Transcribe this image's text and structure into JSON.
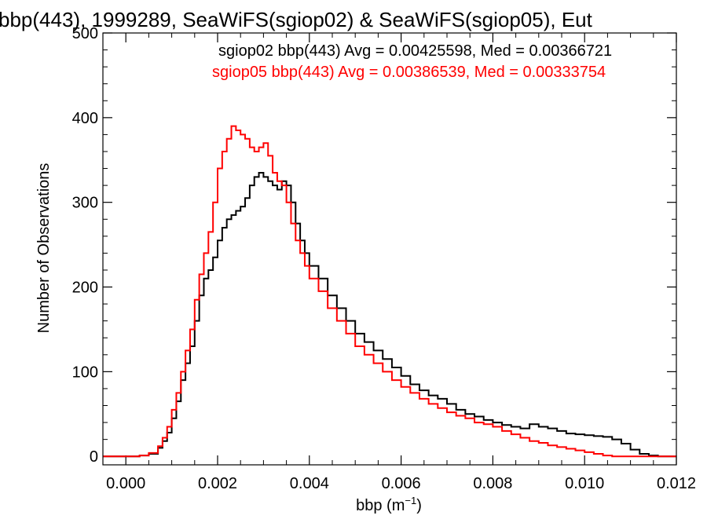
{
  "chart_data": {
    "type": "line",
    "title": "bbp(443), 1999289, SeaWiFS(sgiop02) & SeaWiFS(sgiop05), Eut",
    "xlabel_base": "bbp (m",
    "xlabel_sup": "−1",
    "xlabel_close": ")",
    "ylabel": "Number of Observations",
    "xlim": [
      -0.0005,
      0.012
    ],
    "ylim": [
      -10,
      500
    ],
    "x_ticks": [
      0.0,
      0.002,
      0.004,
      0.006,
      0.008,
      0.01,
      0.012
    ],
    "x_tick_labels": [
      "0.000",
      "0.002",
      "0.004",
      "0.006",
      "0.008",
      "0.010",
      "0.012"
    ],
    "y_ticks": [
      0,
      100,
      200,
      300,
      400,
      500
    ],
    "y_tick_labels": [
      "0",
      "100",
      "200",
      "300",
      "400",
      "500"
    ],
    "grid": false,
    "series": [
      {
        "name": "sgiop02",
        "color": "#000000",
        "stats_text": "sgiop02 bbp(443) Avg = 0.00425598, Med = 0.00366721",
        "points": [
          [
            0.0,
            0
          ],
          [
            0.0003,
            1
          ],
          [
            0.0005,
            3
          ],
          [
            0.0007,
            10
          ],
          [
            0.0008,
            18
          ],
          [
            0.0009,
            28
          ],
          [
            0.001,
            45
          ],
          [
            0.0011,
            65
          ],
          [
            0.0012,
            90
          ],
          [
            0.0013,
            110
          ],
          [
            0.0014,
            130
          ],
          [
            0.0015,
            160
          ],
          [
            0.0016,
            190
          ],
          [
            0.0017,
            210
          ],
          [
            0.0018,
            220
          ],
          [
            0.0019,
            235
          ],
          [
            0.002,
            255
          ],
          [
            0.0021,
            270
          ],
          [
            0.0022,
            280
          ],
          [
            0.0023,
            285
          ],
          [
            0.0024,
            290
          ],
          [
            0.0025,
            295
          ],
          [
            0.0026,
            305
          ],
          [
            0.0027,
            320
          ],
          [
            0.0028,
            330
          ],
          [
            0.0029,
            335
          ],
          [
            0.003,
            330
          ],
          [
            0.0031,
            325
          ],
          [
            0.0032,
            320
          ],
          [
            0.0033,
            315
          ],
          [
            0.0034,
            325
          ],
          [
            0.0035,
            320
          ],
          [
            0.0036,
            300
          ],
          [
            0.0037,
            275
          ],
          [
            0.0038,
            255
          ],
          [
            0.0039,
            240
          ],
          [
            0.004,
            225
          ],
          [
            0.0042,
            210
          ],
          [
            0.0044,
            190
          ],
          [
            0.0046,
            175
          ],
          [
            0.0048,
            160
          ],
          [
            0.005,
            145
          ],
          [
            0.0052,
            135
          ],
          [
            0.0054,
            125
          ],
          [
            0.0056,
            115
          ],
          [
            0.0058,
            105
          ],
          [
            0.006,
            95
          ],
          [
            0.0062,
            85
          ],
          [
            0.0064,
            78
          ],
          [
            0.0066,
            72
          ],
          [
            0.0068,
            68
          ],
          [
            0.007,
            62
          ],
          [
            0.0072,
            55
          ],
          [
            0.0074,
            50
          ],
          [
            0.0076,
            47
          ],
          [
            0.0078,
            43
          ],
          [
            0.008,
            40
          ],
          [
            0.0082,
            37
          ],
          [
            0.0084,
            35
          ],
          [
            0.0086,
            33
          ],
          [
            0.0088,
            38
          ],
          [
            0.009,
            35
          ],
          [
            0.0092,
            33
          ],
          [
            0.0094,
            30
          ],
          [
            0.0096,
            27
          ],
          [
            0.0098,
            26
          ],
          [
            0.01,
            25
          ],
          [
            0.0102,
            24
          ],
          [
            0.0104,
            23
          ],
          [
            0.0106,
            20
          ],
          [
            0.0108,
            15
          ],
          [
            0.011,
            8
          ],
          [
            0.0112,
            3
          ],
          [
            0.0114,
            1
          ],
          [
            0.0116,
            0
          ],
          [
            0.012,
            0
          ]
        ]
      },
      {
        "name": "sgiop05",
        "color": "#ff0000",
        "stats_text": "sgiop05 bbp(443) Avg = 0.00386539, Med = 0.00333754",
        "points": [
          [
            0.0,
            0
          ],
          [
            0.0003,
            1
          ],
          [
            0.0005,
            4
          ],
          [
            0.0007,
            12
          ],
          [
            0.0008,
            22
          ],
          [
            0.0009,
            35
          ],
          [
            0.001,
            55
          ],
          [
            0.0011,
            75
          ],
          [
            0.0012,
            100
          ],
          [
            0.0013,
            125
          ],
          [
            0.0014,
            150
          ],
          [
            0.0015,
            185
          ],
          [
            0.0016,
            215
          ],
          [
            0.0017,
            240
          ],
          [
            0.0018,
            265
          ],
          [
            0.0019,
            300
          ],
          [
            0.002,
            340
          ],
          [
            0.0021,
            360
          ],
          [
            0.0022,
            375
          ],
          [
            0.0023,
            390
          ],
          [
            0.0024,
            385
          ],
          [
            0.0025,
            380
          ],
          [
            0.0026,
            375
          ],
          [
            0.0027,
            365
          ],
          [
            0.0028,
            360
          ],
          [
            0.0029,
            365
          ],
          [
            0.003,
            370
          ],
          [
            0.0031,
            355
          ],
          [
            0.0032,
            335
          ],
          [
            0.0033,
            325
          ],
          [
            0.0034,
            320
          ],
          [
            0.0035,
            300
          ],
          [
            0.0036,
            275
          ],
          [
            0.0037,
            255
          ],
          [
            0.0038,
            240
          ],
          [
            0.0039,
            225
          ],
          [
            0.004,
            210
          ],
          [
            0.0042,
            195
          ],
          [
            0.0044,
            175
          ],
          [
            0.0046,
            160
          ],
          [
            0.0048,
            145
          ],
          [
            0.005,
            130
          ],
          [
            0.0052,
            120
          ],
          [
            0.0054,
            110
          ],
          [
            0.0056,
            100
          ],
          [
            0.0058,
            90
          ],
          [
            0.006,
            82
          ],
          [
            0.0062,
            75
          ],
          [
            0.0064,
            68
          ],
          [
            0.0066,
            62
          ],
          [
            0.0068,
            57
          ],
          [
            0.007,
            52
          ],
          [
            0.0072,
            48
          ],
          [
            0.0074,
            45
          ],
          [
            0.0076,
            40
          ],
          [
            0.0078,
            38
          ],
          [
            0.008,
            35
          ],
          [
            0.0082,
            30
          ],
          [
            0.0084,
            26
          ],
          [
            0.0086,
            22
          ],
          [
            0.0088,
            18
          ],
          [
            0.009,
            16
          ],
          [
            0.0092,
            13
          ],
          [
            0.0094,
            11
          ],
          [
            0.0096,
            9
          ],
          [
            0.0098,
            7
          ],
          [
            0.01,
            5
          ],
          [
            0.0102,
            3
          ],
          [
            0.0104,
            1
          ],
          [
            0.0106,
            0
          ],
          [
            0.012,
            0
          ]
        ]
      }
    ]
  }
}
